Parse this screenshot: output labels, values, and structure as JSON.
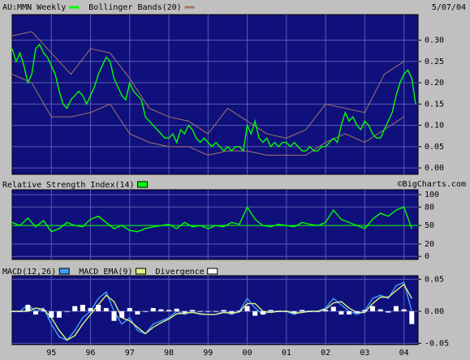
{
  "date": "5/07/04",
  "watermark": "©BigCharts.com",
  "chart_data": [
    {
      "type": "line",
      "xlim": [
        1994.0,
        2004.36
      ],
      "ylim": [
        -0.015,
        0.36
      ],
      "yticks": [
        {
          "value": 0,
          "label": "0.00"
        },
        0.05,
        {
          "value": 0.1,
          "label": "0.10"
        },
        0.15,
        {
          "value": 0.2,
          "label": "0.20"
        },
        0.25,
        {
          "value": 0.3,
          "label": "0.30"
        }
      ],
      "grid": true,
      "series": [
        {
          "name": "AU:MMN Weekly",
          "color": "#00ff00",
          "x": [
            1994.0,
            1994.1,
            1994.2,
            1994.3,
            1994.4,
            1994.5,
            1994.6,
            1994.7,
            1994.8,
            1994.9,
            1995.0,
            1995.1,
            1995.2,
            1995.3,
            1995.4,
            1995.5,
            1995.6,
            1995.7,
            1995.8,
            1995.9,
            1996.0,
            1996.1,
            1996.2,
            1996.3,
            1996.4,
            1996.5,
            1996.6,
            1996.7,
            1996.8,
            1996.9,
            1997.0,
            1997.1,
            1997.2,
            1997.3,
            1997.4,
            1997.5,
            1997.6,
            1997.7,
            1997.8,
            1997.9,
            1998.0,
            1998.1,
            1998.2,
            1998.3,
            1998.4,
            1998.5,
            1998.6,
            1998.7,
            1998.8,
            1998.9,
            1999.0,
            1999.1,
            1999.2,
            1999.3,
            1999.4,
            1999.5,
            1999.6,
            1999.7,
            1999.8,
            1999.9,
            2000.0,
            2000.1,
            2000.2,
            2000.3,
            2000.4,
            2000.5,
            2000.6,
            2000.7,
            2000.8,
            2000.9,
            2001.0,
            2001.1,
            2001.2,
            2001.3,
            2001.4,
            2001.5,
            2001.6,
            2001.7,
            2001.8,
            2001.9,
            2002.0,
            2002.1,
            2002.2,
            2002.3,
            2002.4,
            2002.5,
            2002.6,
            2002.7,
            2002.8,
            2002.9,
            2003.0,
            2003.1,
            2003.2,
            2003.3,
            2003.4,
            2003.5,
            2003.6,
            2003.7,
            2003.8,
            2003.9,
            2004.0,
            2004.1,
            2004.2,
            2004.3
          ],
          "values": [
            0.28,
            0.25,
            0.27,
            0.24,
            0.2,
            0.22,
            0.28,
            0.29,
            0.27,
            0.26,
            0.24,
            0.22,
            0.18,
            0.15,
            0.14,
            0.16,
            0.17,
            0.18,
            0.17,
            0.15,
            0.17,
            0.19,
            0.22,
            0.24,
            0.26,
            0.25,
            0.21,
            0.19,
            0.17,
            0.16,
            0.2,
            0.18,
            0.17,
            0.16,
            0.12,
            0.11,
            0.1,
            0.09,
            0.08,
            0.07,
            0.07,
            0.08,
            0.06,
            0.09,
            0.08,
            0.1,
            0.09,
            0.07,
            0.06,
            0.07,
            0.06,
            0.05,
            0.06,
            0.05,
            0.04,
            0.05,
            0.04,
            0.05,
            0.05,
            0.04,
            0.1,
            0.08,
            0.11,
            0.07,
            0.06,
            0.07,
            0.05,
            0.06,
            0.05,
            0.06,
            0.06,
            0.05,
            0.06,
            0.05,
            0.04,
            0.04,
            0.05,
            0.04,
            0.04,
            0.05,
            0.05,
            0.06,
            0.07,
            0.06,
            0.1,
            0.13,
            0.11,
            0.12,
            0.1,
            0.09,
            0.11,
            0.1,
            0.08,
            0.07,
            0.07,
            0.09,
            0.11,
            0.13,
            0.17,
            0.2,
            0.22,
            0.23,
            0.21,
            0.15
          ]
        }
      ],
      "bands": {
        "name": "Bollinger Bands(20)",
        "color": "#a07868",
        "x": [
          1994.0,
          1994.5,
          1995.0,
          1995.5,
          1996.0,
          1996.5,
          1997.0,
          1997.5,
          1998.0,
          1998.5,
          1999.0,
          1999.5,
          2000.0,
          2000.5,
          2001.0,
          2001.5,
          2002.0,
          2002.5,
          2003.0,
          2003.5,
          2004.0
        ],
        "upper": [
          0.31,
          0.32,
          0.27,
          0.22,
          0.28,
          0.27,
          0.21,
          0.14,
          0.12,
          0.11,
          0.08,
          0.14,
          0.11,
          0.08,
          0.07,
          0.09,
          0.15,
          0.14,
          0.13,
          0.22,
          0.25
        ],
        "lower": [
          0.22,
          0.2,
          0.12,
          0.12,
          0.13,
          0.15,
          0.08,
          0.06,
          0.05,
          0.05,
          0.03,
          0.04,
          0.04,
          0.03,
          0.03,
          0.03,
          0.06,
          0.08,
          0.06,
          0.09,
          0.12
        ]
      }
    },
    {
      "type": "line",
      "xlim": [
        1994.0,
        2004.36
      ],
      "ylim": [
        -5,
        108
      ],
      "yticks": [
        0,
        20,
        50,
        80,
        100
      ],
      "reference_line": 50,
      "series": [
        {
          "name": "Relative Strength Index(14)",
          "color": "#00ff00",
          "x": [
            1994.0,
            1994.2,
            1994.4,
            1994.6,
            1994.8,
            1995.0,
            1995.2,
            1995.4,
            1995.6,
            1995.8,
            1996.0,
            1996.2,
            1996.4,
            1996.6,
            1996.8,
            1997.0,
            1997.2,
            1997.4,
            1997.6,
            1997.8,
            1998.0,
            1998.2,
            1998.4,
            1998.6,
            1998.8,
            1999.0,
            1999.2,
            1999.4,
            1999.6,
            1999.8,
            2000.0,
            2000.2,
            2000.4,
            2000.6,
            2000.8,
            2001.0,
            2001.2,
            2001.4,
            2001.6,
            2001.8,
            2002.0,
            2002.2,
            2002.4,
            2002.6,
            2002.8,
            2003.0,
            2003.2,
            2003.4,
            2003.6,
            2003.8,
            2004.0,
            2004.2
          ],
          "values": [
            55,
            50,
            62,
            48,
            58,
            40,
            45,
            55,
            50,
            48,
            60,
            65,
            55,
            45,
            50,
            42,
            40,
            45,
            48,
            50,
            52,
            45,
            55,
            48,
            50,
            45,
            50,
            48,
            55,
            52,
            80,
            60,
            50,
            48,
            52,
            50,
            48,
            55,
            52,
            50,
            55,
            75,
            60,
            55,
            50,
            45,
            60,
            70,
            65,
            75,
            80,
            45
          ]
        }
      ]
    },
    {
      "type": "line",
      "xlim": [
        1994.0,
        2004.36
      ],
      "ylim": [
        -0.052,
        0.0555
      ],
      "yticks": [
        -0.05,
        {
          "value": 0,
          "label": "0.00"
        },
        0.05
      ],
      "xticks": [
        {
          "value": 1995,
          "label": "95"
        },
        {
          "value": 1996,
          "label": "96"
        },
        {
          "value": 1997,
          "label": "97"
        },
        {
          "value": 1998,
          "label": "98"
        },
        {
          "value": 1999,
          "label": "99"
        },
        {
          "value": 2000,
          "label": "00"
        },
        {
          "value": 2001,
          "label": "01"
        },
        {
          "value": 2002,
          "label": "02"
        },
        {
          "value": 2003,
          "label": "03"
        },
        {
          "value": 2004,
          "label": "04"
        }
      ],
      "series": [
        {
          "name": "MACD(12,26)",
          "color": "#3fa0ff",
          "x": [
            1994.0,
            1994.2,
            1994.4,
            1994.6,
            1994.8,
            1995.0,
            1995.2,
            1995.4,
            1995.6,
            1995.8,
            1996.0,
            1996.2,
            1996.4,
            1996.6,
            1996.8,
            1997.0,
            1997.2,
            1997.4,
            1997.6,
            1997.8,
            1998.0,
            1998.2,
            1998.4,
            1998.6,
            1998.8,
            1999.0,
            1999.2,
            1999.4,
            1999.6,
            1999.8,
            2000.0,
            2000.2,
            2000.4,
            2000.6,
            2000.8,
            2001.0,
            2001.2,
            2001.4,
            2001.6,
            2001.8,
            2002.0,
            2002.2,
            2002.4,
            2002.6,
            2002.8,
            2003.0,
            2003.2,
            2003.4,
            2003.6,
            2003.8,
            2004.0,
            2004.2
          ],
          "values": [
            0,
            0,
            0.01,
            0,
            0.005,
            -0.02,
            -0.04,
            -0.045,
            -0.03,
            -0.01,
            0,
            0.02,
            0.03,
            0,
            -0.02,
            -0.01,
            -0.03,
            -0.035,
            -0.02,
            -0.015,
            -0.01,
            0,
            -0.005,
            0,
            -0.005,
            -0.005,
            -0.005,
            0,
            -0.005,
            0,
            0.02,
            0.005,
            -0.005,
            0,
            0,
            0,
            -0.005,
            0,
            0,
            0,
            0.005,
            0.02,
            0.01,
            0,
            -0.005,
            0,
            0.02,
            0.025,
            0.02,
            0.04,
            0.045,
            0
          ]
        },
        {
          "name": "MACD EMA(9)",
          "color": "#e0f080",
          "x": [
            1994.0,
            1994.2,
            1994.4,
            1994.6,
            1994.8,
            1995.0,
            1995.2,
            1995.4,
            1995.6,
            1995.8,
            1996.0,
            1996.2,
            1996.4,
            1996.6,
            1996.8,
            1997.0,
            1997.2,
            1997.4,
            1997.6,
            1997.8,
            1998.0,
            1998.2,
            1998.4,
            1998.6,
            1998.8,
            1999.0,
            1999.2,
            1999.4,
            1999.6,
            1999.8,
            2000.0,
            2000.2,
            2000.4,
            2000.6,
            2000.8,
            2001.0,
            2001.2,
            2001.4,
            2001.6,
            2001.8,
            2002.0,
            2002.2,
            2002.4,
            2002.6,
            2002.8,
            2003.0,
            2003.2,
            2003.4,
            2003.6,
            2003.8,
            2004.0,
            2004.2
          ],
          "values": [
            0,
            0,
            0,
            0.005,
            0.003,
            -0.01,
            -0.03,
            -0.045,
            -0.038,
            -0.02,
            -0.005,
            0.01,
            0.025,
            0.015,
            -0.01,
            -0.015,
            -0.025,
            -0.035,
            -0.025,
            -0.018,
            -0.012,
            -0.004,
            -0.003,
            -0.002,
            -0.004,
            -0.005,
            -0.005,
            -0.002,
            -0.003,
            -0.001,
            0.012,
            0.012,
            0,
            -0.002,
            0,
            0,
            -0.003,
            -0.002,
            0,
            0,
            0.003,
            0.013,
            0.015,
            0.005,
            -0.002,
            -0.002,
            0.012,
            0.022,
            0.022,
            0.032,
            0.042,
            0.02
          ]
        },
        {
          "name": "Divergence",
          "color": "#ffffff",
          "style": "bar",
          "x": [
            1994.0,
            1994.2,
            1994.4,
            1994.6,
            1994.8,
            1995.0,
            1995.2,
            1995.4,
            1995.6,
            1995.8,
            1996.0,
            1996.2,
            1996.4,
            1996.6,
            1996.8,
            1997.0,
            1997.2,
            1997.4,
            1997.6,
            1997.8,
            1998.0,
            1998.2,
            1998.4,
            1998.6,
            1998.8,
            1999.0,
            1999.2,
            1999.4,
            1999.6,
            1999.8,
            2000.0,
            2000.2,
            2000.4,
            2000.6,
            2000.8,
            2001.0,
            2001.2,
            2001.4,
            2001.6,
            2001.8,
            2002.0,
            2002.2,
            2002.4,
            2002.6,
            2002.8,
            2003.0,
            2003.2,
            2003.4,
            2003.6,
            2003.8,
            2004.0,
            2004.2
          ],
          "values": [
            0,
            0,
            0.01,
            -0.005,
            0.002,
            -0.01,
            -0.01,
            0,
            0.008,
            0.01,
            0.005,
            0.01,
            0.005,
            -0.015,
            -0.01,
            0.005,
            -0.005,
            0,
            0.005,
            0.003,
            0.002,
            0.004,
            -0.002,
            0.002,
            -0.001,
            0,
            0,
            0.002,
            -0.002,
            0.001,
            0.008,
            -0.007,
            -0.005,
            0.002,
            0,
            0,
            -0.002,
            0.002,
            0,
            0,
            0.002,
            0.007,
            -0.005,
            -0.005,
            -0.003,
            0.002,
            0.008,
            0.003,
            -0.002,
            0.008,
            0.003,
            -0.02
          ]
        }
      ]
    }
  ]
}
